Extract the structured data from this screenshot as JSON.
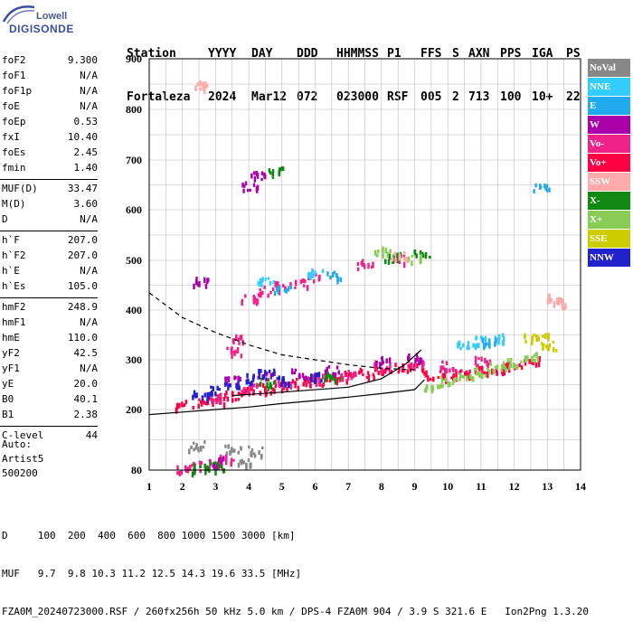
{
  "logo": {
    "line1": "Lowell",
    "line2": "DIGISONDE"
  },
  "header": {
    "labels": [
      "Station",
      "YYYY",
      "DAY",
      "DDD",
      "HHMMSS",
      "P1",
      "FFS",
      "S",
      "AXN",
      "PPS",
      "IGA",
      "PS"
    ],
    "values": [
      "Fortaleza",
      "2024",
      "Mar12",
      "072",
      "023000",
      "RSF",
      "005",
      "2",
      "713",
      "100",
      "10+",
      "22"
    ]
  },
  "params": [
    {
      "k": "foF2",
      "v": "9.300"
    },
    {
      "k": "foF1",
      "v": "N/A"
    },
    {
      "k": "foF1p",
      "v": "N/A"
    },
    {
      "k": "foE",
      "v": "N/A"
    },
    {
      "k": "foEp",
      "v": "0.53"
    },
    {
      "k": "fxI",
      "v": "10.40"
    },
    {
      "k": "foEs",
      "v": "2.45"
    },
    {
      "k": "fmin",
      "v": "1.40"
    },
    {
      "sep": true
    },
    {
      "k": "MUF(D)",
      "v": "33.47"
    },
    {
      "k": "M(D)",
      "v": "3.60"
    },
    {
      "k": "D",
      "v": "N/A"
    },
    {
      "sep": true
    },
    {
      "k": "h`F",
      "v": "207.0"
    },
    {
      "k": "h`F2",
      "v": "207.0"
    },
    {
      "k": "h`E",
      "v": "N/A"
    },
    {
      "k": "h`Es",
      "v": "105.0"
    },
    {
      "sep": true
    },
    {
      "k": "hmF2",
      "v": "248.9"
    },
    {
      "k": "hmF1",
      "v": "N/A"
    },
    {
      "k": "hmE",
      "v": "110.0"
    },
    {
      "k": "yF2",
      "v": "42.5"
    },
    {
      "k": "yF1",
      "v": "N/A"
    },
    {
      "k": "yE",
      "v": "20.0"
    },
    {
      "k": "B0",
      "v": "40.1"
    },
    {
      "k": "B1",
      "v": "2.38"
    },
    {
      "sep": true
    },
    {
      "k": "C-level",
      "v": "44"
    }
  ],
  "auto": {
    "line1": "Auto:",
    "line2": "Artist5",
    "line3": "500200"
  },
  "footer": {
    "d_row": "D     100  200  400  600  800 1000 1500 3000 [km]",
    "muf_row": "MUF   9.7  9.8 10.3 11.2 12.5 14.3 19.6 33.5 [MHz]",
    "file_row": "FZA0M_20240723000.RSF / 260fx256h 50 kHz 5.0 km / DPS-4 FZA0M 904 / 3.9 S 321.6 E   Ion2Png 1.3.20"
  },
  "legend": [
    {
      "label": "NoVal",
      "color": "#888888"
    },
    {
      "label": "NNE",
      "color": "#33ccff"
    },
    {
      "label": "E",
      "color": "#22aaee"
    },
    {
      "label": "W",
      "color": "#aa00aa"
    },
    {
      "label": "Vo-",
      "color": "#ee2288"
    },
    {
      "label": "Vo+",
      "color": "#ff0044"
    },
    {
      "label": "SSW",
      "color": "#ffaaaa"
    },
    {
      "label": "X-",
      "color": "#118811"
    },
    {
      "label": "X+",
      "color": "#88cc55"
    },
    {
      "label": "SSE",
      "color": "#cccc00"
    },
    {
      "label": "NNW",
      "color": "#2222cc"
    }
  ],
  "chart_data": {
    "type": "scatter",
    "xlim": [
      1,
      14
    ],
    "ylim": [
      80,
      900
    ],
    "x_ticks": [
      1,
      2,
      3,
      4,
      5,
      6,
      7,
      8,
      9,
      10,
      11,
      12,
      13,
      14
    ],
    "y_ticks": [
      80,
      200,
      300,
      400,
      500,
      600,
      700,
      800,
      900
    ],
    "grid": true,
    "series": [
      {
        "name": "Vo+",
        "color": "#ff0044",
        "points": [
          [
            2.0,
            212
          ],
          [
            2.5,
            215
          ],
          [
            3.0,
            222
          ],
          [
            3.5,
            230
          ],
          [
            4.0,
            238
          ],
          [
            4.5,
            245
          ],
          [
            5.0,
            250
          ],
          [
            5.5,
            255
          ],
          [
            6.0,
            260
          ],
          [
            6.5,
            265
          ],
          [
            7.0,
            270
          ],
          [
            7.5,
            275
          ],
          [
            8.0,
            280
          ],
          [
            8.5,
            285
          ],
          [
            9.0,
            290
          ],
          [
            9.5,
            270
          ],
          [
            10.0,
            270
          ],
          [
            10.5,
            275
          ],
          [
            11.0,
            280
          ],
          [
            11.5,
            285
          ],
          [
            12.0,
            290
          ],
          [
            12.5,
            300
          ]
        ]
      },
      {
        "name": "Vo-",
        "color": "#ee2288",
        "points": [
          [
            3.0,
            225
          ],
          [
            4.0,
            245
          ],
          [
            5.0,
            255
          ],
          [
            6.0,
            265
          ],
          [
            7.0,
            275
          ],
          [
            8.0,
            290
          ],
          [
            9.0,
            295
          ],
          [
            10.0,
            290
          ],
          [
            11.0,
            300
          ],
          [
            2.0,
            85
          ],
          [
            2.5,
            90
          ],
          [
            3.0,
            95
          ],
          [
            3.3,
            105
          ],
          [
            4.0,
            425
          ],
          [
            4.5,
            440
          ],
          [
            5.0,
            450
          ],
          [
            5.5,
            455
          ],
          [
            6.0,
            470
          ],
          [
            7.5,
            495
          ],
          [
            8.5,
            505
          ],
          [
            3.5,
            320
          ],
          [
            3.7,
            345
          ]
        ]
      },
      {
        "name": "W",
        "color": "#aa00aa",
        "points": [
          [
            3.5,
            260
          ],
          [
            4.5,
            270
          ],
          [
            5.5,
            275
          ],
          [
            6.5,
            280
          ],
          [
            8.0,
            300
          ],
          [
            9.0,
            305
          ],
          [
            2.5,
            460
          ],
          [
            4.0,
            650
          ],
          [
            4.3,
            670
          ],
          [
            3.0,
            100
          ]
        ]
      },
      {
        "name": "NNE",
        "color": "#33ccff",
        "points": [
          [
            10.5,
            330
          ],
          [
            11.0,
            340
          ],
          [
            11.5,
            345
          ],
          [
            4.5,
            458
          ],
          [
            6.0,
            480
          ]
        ]
      },
      {
        "name": "E",
        "color": "#22aaee",
        "points": [
          [
            5.0,
            440
          ],
          [
            6.5,
            470
          ],
          [
            11.2,
            340
          ],
          [
            12.8,
            650
          ]
        ]
      },
      {
        "name": "X-",
        "color": "#118811",
        "points": [
          [
            2.5,
            85
          ],
          [
            3.0,
            90
          ],
          [
            4.5,
            255
          ],
          [
            6.5,
            270
          ],
          [
            8.3,
            510
          ],
          [
            9.2,
            515
          ],
          [
            4.8,
            680
          ]
        ]
      },
      {
        "name": "X+",
        "color": "#88cc55",
        "points": [
          [
            9.5,
            250
          ],
          [
            10.0,
            260
          ],
          [
            10.5,
            270
          ],
          [
            11.0,
            280
          ],
          [
            11.5,
            290
          ],
          [
            12.0,
            295
          ],
          [
            12.5,
            310
          ],
          [
            8.0,
            520
          ],
          [
            9.0,
            505
          ]
        ]
      },
      {
        "name": "NNW",
        "color": "#2222cc",
        "points": [
          [
            2.5,
            230
          ],
          [
            3.0,
            240
          ],
          [
            3.5,
            255
          ],
          [
            4.0,
            265
          ],
          [
            4.5,
            275
          ],
          [
            5.0,
            260
          ],
          [
            6.0,
            270
          ]
        ]
      },
      {
        "name": "SSW",
        "color": "#ffaaaa",
        "points": [
          [
            2.6,
            850
          ],
          [
            13.2,
            430
          ],
          [
            13.4,
            415
          ],
          [
            8.5,
            510
          ]
        ]
      },
      {
        "name": "SSE",
        "color": "#cccc00",
        "points": [
          [
            12.8,
            350
          ],
          [
            13.0,
            330
          ],
          [
            12.5,
            345
          ]
        ]
      },
      {
        "name": "NoVal",
        "color": "#888888",
        "points": [
          [
            2.4,
            130
          ],
          [
            3.5,
            125
          ],
          [
            4.2,
            120
          ],
          [
            3.8,
            100
          ]
        ]
      }
    ],
    "curves": [
      {
        "style": "dashed",
        "points": [
          [
            1.0,
            435
          ],
          [
            1.5,
            410
          ],
          [
            2.0,
            385
          ],
          [
            3.0,
            355
          ],
          [
            4.0,
            330
          ],
          [
            5.0,
            310
          ],
          [
            6.0,
            300
          ],
          [
            7.0,
            290
          ],
          [
            8.0,
            283
          ],
          [
            9.0,
            280
          ]
        ]
      },
      {
        "style": "solid",
        "points": [
          [
            1.0,
            190
          ],
          [
            2.0,
            195
          ],
          [
            3.0,
            200
          ],
          [
            4.0,
            205
          ],
          [
            5.0,
            212
          ],
          [
            6.0,
            218
          ],
          [
            7.0,
            225
          ],
          [
            8.0,
            232
          ],
          [
            9.0,
            240
          ],
          [
            9.3,
            260
          ]
        ]
      },
      {
        "style": "solid",
        "points": [
          [
            3.5,
            228
          ],
          [
            5.0,
            235
          ],
          [
            7.0,
            245
          ],
          [
            8.0,
            262
          ],
          [
            8.7,
            290
          ],
          [
            9.2,
            320
          ]
        ]
      }
    ]
  }
}
